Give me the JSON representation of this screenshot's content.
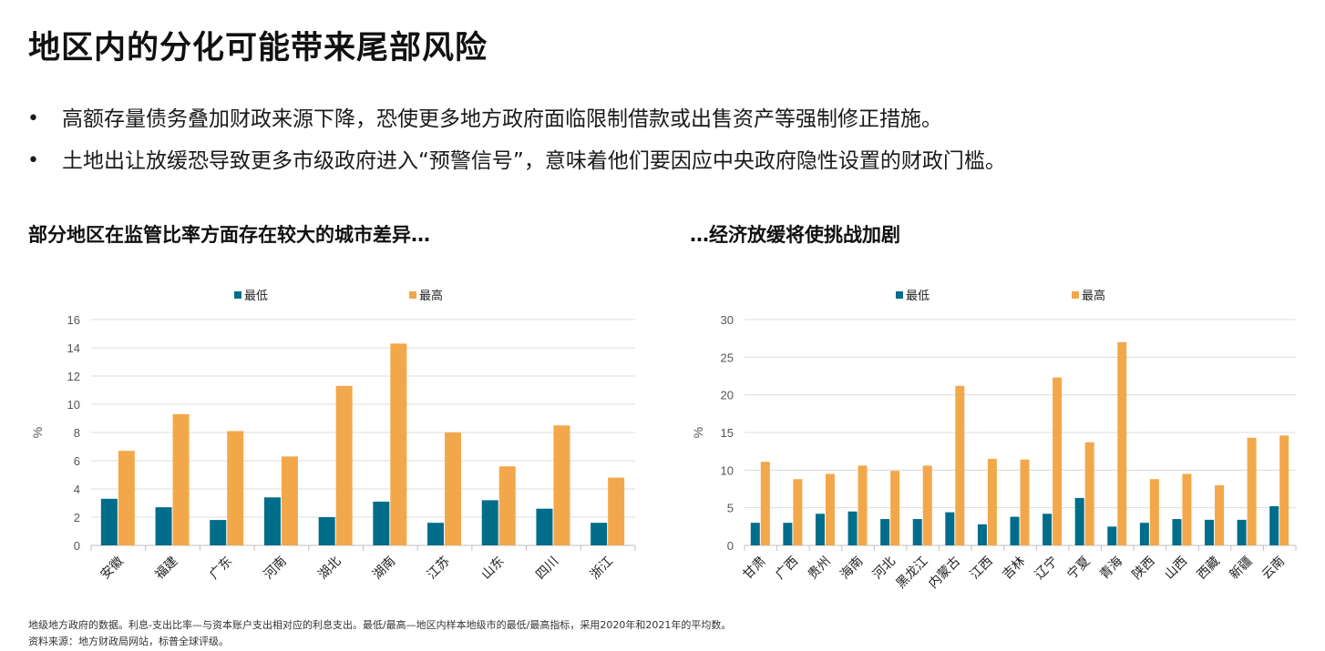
{
  "page": {
    "title": "地区内的分化可能带来尾部风险",
    "bullets": [
      "高额存量债务叠加财政来源下降，恐使更多地方政府面临限制借款或出售资产等强制修正措施。",
      "土地出让放缓恐导致更多市级政府进入“预警信号”，意味着他们要因应中央政府隐性设置的财政门槛。"
    ],
    "bullet_symbol": "•",
    "left_subtitle": "部分地区在监管比率方面存在较大的城市差异…",
    "right_subtitle": "…经济放缓将使挑战加剧",
    "footnote1": "地级地方政府的数据。利息-支出比率—与资本账户支出相对应的利息支出。最低/最高—地区内样本地级市的最低/最高指标，采用2020年和2021年的平均数。",
    "footnote2": "资料来源：地方财政局网站，标普全球评级。"
  },
  "chart_data": [
    {
      "type": "bar",
      "ylabel": "%",
      "ylim": [
        0,
        16
      ],
      "yticks": [
        0,
        2,
        4,
        6,
        8,
        10,
        12,
        14,
        16
      ],
      "grid": true,
      "legend_position": "top",
      "categories": [
        "安徽",
        "福建",
        "广东",
        "河南",
        "湖北",
        "湖南",
        "江苏",
        "山东",
        "四川",
        "浙江"
      ],
      "series": [
        {
          "name": "最低",
          "color": "#006d8a",
          "values": [
            3.3,
            2.7,
            1.8,
            3.4,
            2.0,
            3.1,
            1.6,
            3.2,
            2.6,
            1.6
          ]
        },
        {
          "name": "最高",
          "color": "#f2a84a",
          "values": [
            6.7,
            9.3,
            8.1,
            6.3,
            11.3,
            14.3,
            8.0,
            5.6,
            8.5,
            4.8
          ]
        }
      ]
    },
    {
      "type": "bar",
      "ylabel": "%",
      "ylim": [
        0,
        30
      ],
      "yticks": [
        0,
        5,
        10,
        15,
        20,
        25,
        30
      ],
      "grid": true,
      "legend_position": "top",
      "categories": [
        "甘肃",
        "广西",
        "贵州",
        "海南",
        "河北",
        "黑龙江",
        "内蒙古",
        "江西",
        "吉林",
        "辽宁",
        "宁夏",
        "青海",
        "陕西",
        "山西",
        "西藏",
        "新疆",
        "云南"
      ],
      "series": [
        {
          "name": "最低",
          "color": "#006d8a",
          "values": [
            3.0,
            3.0,
            4.2,
            4.5,
            3.5,
            3.5,
            4.4,
            2.8,
            3.8,
            4.2,
            6.3,
            2.5,
            3.0,
            3.5,
            3.4,
            3.4,
            5.2
          ]
        },
        {
          "name": "最高",
          "color": "#f2a84a",
          "values": [
            11.1,
            8.8,
            9.5,
            10.6,
            9.9,
            10.6,
            21.2,
            11.5,
            11.4,
            22.3,
            13.7,
            27.0,
            8.8,
            9.5,
            8.0,
            14.3,
            14.6
          ]
        }
      ]
    }
  ]
}
